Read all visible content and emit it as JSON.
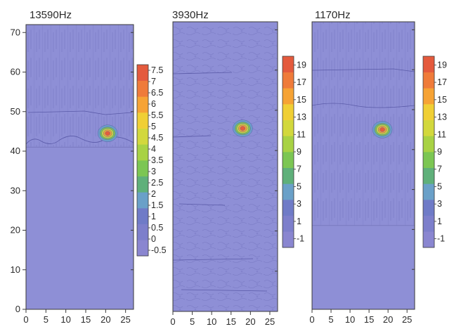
{
  "chart_data": [
    {
      "type": "heatmap",
      "title": "13590Hz",
      "x_ticks": [
        "0",
        "5",
        "10",
        "15",
        "20",
        "25"
      ],
      "y_ticks": [
        "0",
        "10",
        "20",
        "30",
        "40",
        "50",
        "60",
        "70"
      ],
      "xlim": [
        0,
        27
      ],
      "ylim": [
        0,
        72
      ],
      "colorbar_ticks": [
        "7.5",
        "7",
        "6.5",
        "6",
        "5.5",
        "5",
        "4.5",
        "4",
        "3.5",
        "3",
        "2.5",
        "2",
        "1.5",
        "1",
        "0.5",
        "0",
        "-0.5"
      ],
      "colorbar_range": [
        -0.75,
        7.75
      ],
      "background_level": 0.5,
      "hotspot": {
        "x": 20.5,
        "y": 44.5,
        "peak": 7.5
      },
      "data_top_y": 41
    },
    {
      "type": "heatmap",
      "title": "3930Hz",
      "x_ticks": [
        "0",
        "5",
        "10",
        "15",
        "20",
        "25"
      ],
      "xlim": [
        0,
        27
      ],
      "ylim": [
        0,
        72
      ],
      "colorbar_ticks": [
        "19",
        "17",
        "15",
        "13",
        "11",
        "9",
        "7",
        "5",
        "3",
        "1",
        "-1"
      ],
      "colorbar_range": [
        -2,
        20
      ],
      "background_level": 2,
      "hotspot": {
        "x": 18.0,
        "y": 45.5,
        "peak": 19
      },
      "data_top_y": 0
    },
    {
      "type": "heatmap",
      "title": "1170Hz",
      "x_ticks": [
        "0",
        "5",
        "10",
        "15",
        "20",
        "25"
      ],
      "xlim": [
        0,
        27
      ],
      "ylim": [
        0,
        72
      ],
      "colorbar_ticks": [
        "19",
        "17",
        "15",
        "13",
        "11",
        "9",
        "7",
        "5",
        "3",
        "1",
        "-1"
      ],
      "colorbar_range": [
        -2,
        20
      ],
      "background_level": 2,
      "hotspot": {
        "x": 18.5,
        "y": 45.0,
        "peak": 19
      },
      "data_top_y": 21
    }
  ],
  "colors": {
    "background_fill": "#8e8fd6",
    "contour_line": "#5a5aa8",
    "scale": [
      "#8a86d0",
      "#7d7fcb",
      "#6f7bc7",
      "#6aa0c8",
      "#5fb07a",
      "#7cc653",
      "#a8d244",
      "#d2d83d",
      "#f0cf35",
      "#f6a335",
      "#ef7b3a",
      "#e45a3d"
    ]
  }
}
